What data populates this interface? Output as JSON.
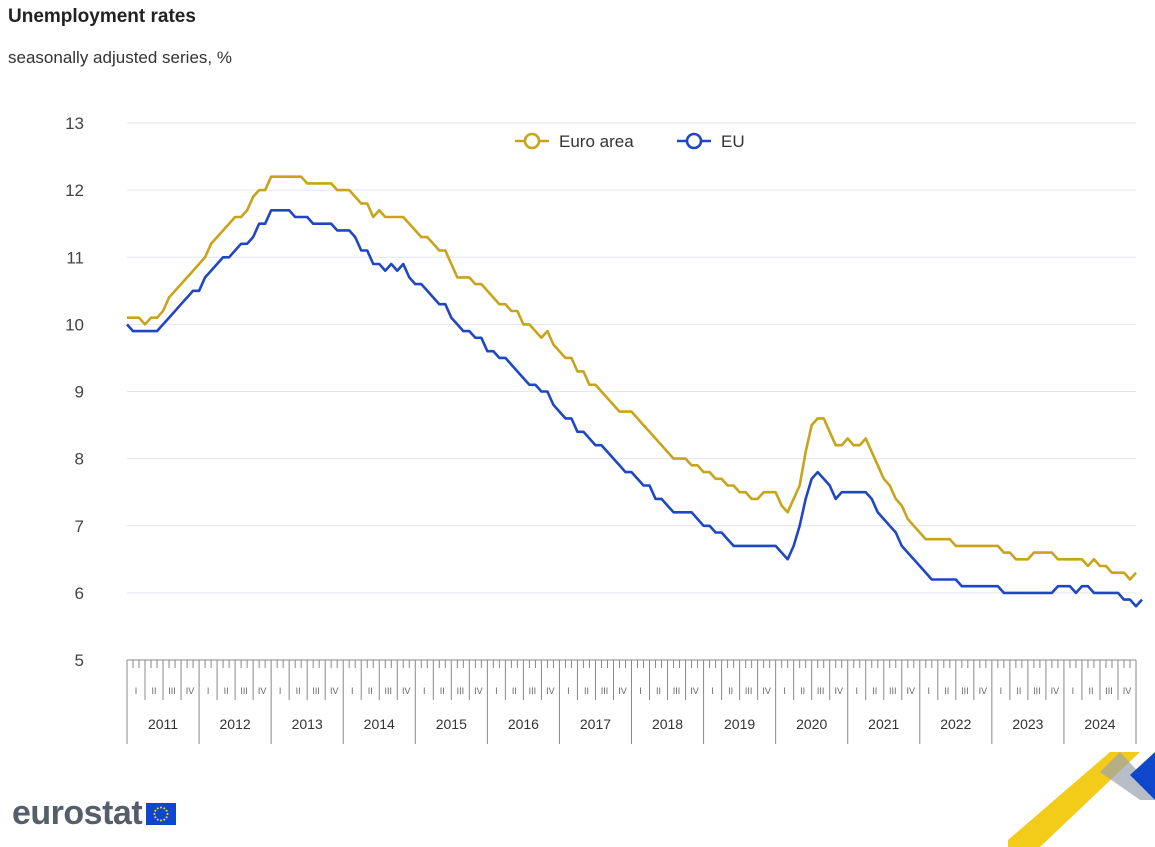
{
  "title": "Unemployment rates",
  "subtitle": "seasonally adjusted series, %",
  "brand": "eurostat",
  "colors": {
    "euro_area": "#c9a31a",
    "eu": "#1f47c4",
    "grid": "#e1e6f0",
    "logo_yellow": "#f2c500",
    "logo_blue": "#0e47cb"
  },
  "chart_data": {
    "type": "line",
    "ylim": [
      5,
      13
    ],
    "yticks": [
      5,
      6,
      7,
      8,
      9,
      10,
      11,
      12,
      13
    ],
    "x_frequency": "monthly",
    "x_start": "2011-01",
    "quarter_labels": [
      "I",
      "II",
      "III",
      "IV"
    ],
    "years": [
      "2011",
      "2012",
      "2013",
      "2014",
      "2015",
      "2016",
      "2017",
      "2018",
      "2019",
      "2020",
      "2021",
      "2022",
      "2023",
      "2024"
    ],
    "legend": [
      "Euro area",
      "EU"
    ],
    "series": [
      {
        "name": "Euro area",
        "color": "#c9a31a",
        "values": [
          10.1,
          10.1,
          10.1,
          10.0,
          10.1,
          10.1,
          10.2,
          10.4,
          10.5,
          10.6,
          10.7,
          10.8,
          10.9,
          11.0,
          11.2,
          11.3,
          11.4,
          11.5,
          11.6,
          11.6,
          11.7,
          11.9,
          12.0,
          12.0,
          12.2,
          12.2,
          12.2,
          12.2,
          12.2,
          12.2,
          12.1,
          12.1,
          12.1,
          12.1,
          12.1,
          12.0,
          12.0,
          12.0,
          11.9,
          11.8,
          11.8,
          11.6,
          11.7,
          11.6,
          11.6,
          11.6,
          11.6,
          11.5,
          11.4,
          11.3,
          11.3,
          11.2,
          11.1,
          11.1,
          10.9,
          10.7,
          10.7,
          10.7,
          10.6,
          10.6,
          10.5,
          10.4,
          10.3,
          10.3,
          10.2,
          10.2,
          10.0,
          10.0,
          9.9,
          9.8,
          9.9,
          9.7,
          9.6,
          9.5,
          9.5,
          9.3,
          9.3,
          9.1,
          9.1,
          9.0,
          8.9,
          8.8,
          8.7,
          8.7,
          8.7,
          8.6,
          8.5,
          8.4,
          8.3,
          8.2,
          8.1,
          8.0,
          8.0,
          8.0,
          7.9,
          7.9,
          7.8,
          7.8,
          7.7,
          7.7,
          7.6,
          7.6,
          7.5,
          7.5,
          7.4,
          7.4,
          7.5,
          7.5,
          7.5,
          7.3,
          7.2,
          7.4,
          7.6,
          8.1,
          8.5,
          8.6,
          8.6,
          8.4,
          8.2,
          8.2,
          8.3,
          8.2,
          8.2,
          8.3,
          8.1,
          7.9,
          7.7,
          7.6,
          7.4,
          7.3,
          7.1,
          7.0,
          6.9,
          6.8,
          6.8,
          6.8,
          6.8,
          6.8,
          6.7,
          6.7,
          6.7,
          6.7,
          6.7,
          6.7,
          6.7,
          6.7,
          6.6,
          6.6,
          6.5,
          6.5,
          6.5,
          6.6,
          6.6,
          6.6,
          6.6,
          6.5,
          6.5,
          6.5,
          6.5,
          6.5,
          6.4,
          6.5,
          6.4,
          6.4,
          6.3,
          6.3,
          6.3,
          6.2,
          6.3
        ]
      },
      {
        "name": "EU",
        "color": "#1f47c4",
        "values": [
          10.0,
          9.9,
          9.9,
          9.9,
          9.9,
          9.9,
          10.0,
          10.1,
          10.2,
          10.3,
          10.4,
          10.5,
          10.5,
          10.7,
          10.8,
          10.9,
          11.0,
          11.0,
          11.1,
          11.2,
          11.2,
          11.3,
          11.5,
          11.5,
          11.7,
          11.7,
          11.7,
          11.7,
          11.6,
          11.6,
          11.6,
          11.5,
          11.5,
          11.5,
          11.5,
          11.4,
          11.4,
          11.4,
          11.3,
          11.1,
          11.1,
          10.9,
          10.9,
          10.8,
          10.9,
          10.8,
          10.9,
          10.7,
          10.6,
          10.6,
          10.5,
          10.4,
          10.3,
          10.3,
          10.1,
          10.0,
          9.9,
          9.9,
          9.8,
          9.8,
          9.6,
          9.6,
          9.5,
          9.5,
          9.4,
          9.3,
          9.2,
          9.1,
          9.1,
          9.0,
          9.0,
          8.8,
          8.7,
          8.6,
          8.6,
          8.4,
          8.4,
          8.3,
          8.2,
          8.2,
          8.1,
          8.0,
          7.9,
          7.8,
          7.8,
          7.7,
          7.6,
          7.6,
          7.4,
          7.4,
          7.3,
          7.2,
          7.2,
          7.2,
          7.2,
          7.1,
          7.0,
          7.0,
          6.9,
          6.9,
          6.8,
          6.7,
          6.7,
          6.7,
          6.7,
          6.7,
          6.7,
          6.7,
          6.7,
          6.6,
          6.5,
          6.7,
          7.0,
          7.4,
          7.7,
          7.8,
          7.7,
          7.6,
          7.4,
          7.5,
          7.5,
          7.5,
          7.5,
          7.5,
          7.4,
          7.2,
          7.1,
          7.0,
          6.9,
          6.7,
          6.6,
          6.5,
          6.4,
          6.3,
          6.2,
          6.2,
          6.2,
          6.2,
          6.2,
          6.1,
          6.1,
          6.1,
          6.1,
          6.1,
          6.1,
          6.1,
          6.0,
          6.0,
          6.0,
          6.0,
          6.0,
          6.0,
          6.0,
          6.0,
          6.0,
          6.1,
          6.1,
          6.1,
          6.0,
          6.1,
          6.1,
          6.0,
          6.0,
          6.0,
          6.0,
          6.0,
          5.9,
          5.9,
          5.8,
          5.9
        ]
      }
    ]
  }
}
